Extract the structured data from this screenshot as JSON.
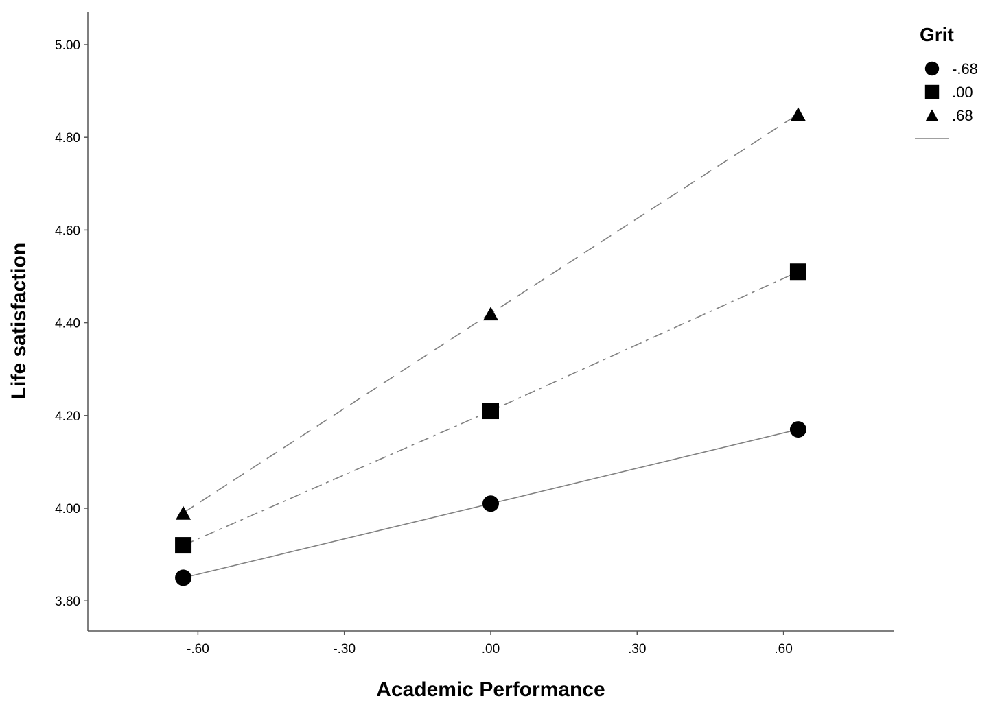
{
  "chart_data": {
    "type": "line",
    "xlabel": "Academic Performance",
    "ylabel": "Life satisfaction",
    "xlim": [
      -0.8,
      0.8
    ],
    "ylim": [
      3.7,
      5.07
    ],
    "x_ticks": [
      -0.6,
      -0.3,
      0.0,
      0.3,
      0.6
    ],
    "x_tick_labels": [
      "-.60",
      "-.30",
      ".00",
      ".30",
      ".60"
    ],
    "y_ticks": [
      3.8,
      4.0,
      4.2,
      4.4,
      4.6,
      4.8,
      5.0
    ],
    "y_tick_labels": [
      "3.80",
      "4.00",
      "4.20",
      "4.40",
      "4.60",
      "4.80",
      "5.00"
    ],
    "grid": false,
    "legend": {
      "title": "Grit",
      "position": "top-right"
    },
    "x": [
      -0.63,
      0.0,
      0.63
    ],
    "series": [
      {
        "name": "-.68",
        "marker": "circle",
        "line_style": "solid",
        "values": [
          3.85,
          4.01,
          4.17
        ]
      },
      {
        "name": ".00",
        "marker": "square",
        "line_style": "dash-dot",
        "values": [
          3.92,
          4.21,
          4.51
        ]
      },
      {
        "name": ".68",
        "marker": "triangle",
        "line_style": "dashed",
        "values": [
          3.99,
          4.42,
          4.85
        ]
      }
    ],
    "colors": {
      "markers": "#000000",
      "lines": "#808080",
      "axes": "#555555"
    }
  }
}
